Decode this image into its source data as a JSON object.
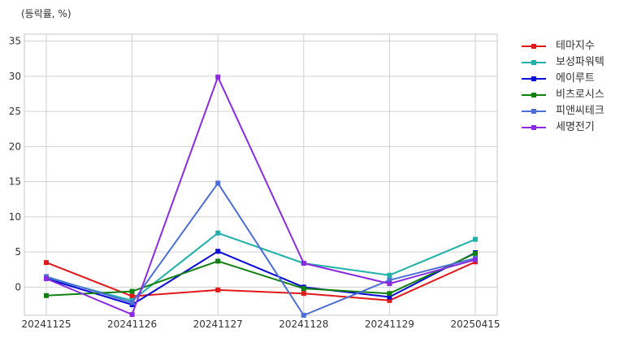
{
  "chart_data": {
    "type": "line",
    "ylabel": "(등락률, %)",
    "categories": [
      "20241125",
      "20241126",
      "20241127",
      "20241128",
      "20241129",
      "20250415"
    ],
    "yticks": [
      0,
      5,
      10,
      15,
      20,
      25,
      30,
      35
    ],
    "ylim": [
      -4,
      36
    ],
    "grid": true,
    "legend_position": "right",
    "series": [
      {
        "name": "테마지수",
        "color": "#e0191b",
        "values": [
          3.5,
          -1.3,
          -0.4,
          -0.9,
          -1.9,
          3.6
        ]
      },
      {
        "name": "보성파워텍",
        "color": "#20b2aa",
        "values": [
          1.3,
          -1.9,
          7.7,
          3.4,
          1.7,
          6.8
        ]
      },
      {
        "name": "에이루트",
        "color": "#0a0ad8",
        "values": [
          1.2,
          -2.5,
          5.1,
          0.0,
          -1.4,
          4.9
        ]
      },
      {
        "name": "비츠로시스",
        "color": "#108010",
        "values": [
          -1.2,
          -0.6,
          3.7,
          -0.2,
          -0.9,
          4.8
        ]
      },
      {
        "name": "피앤씨테크",
        "color": "#4b6fd6",
        "values": [
          1.5,
          -2.2,
          14.8,
          -4.0,
          1.0,
          4.1
        ]
      },
      {
        "name": "세명전기",
        "color": "#8a2be2",
        "values": [
          1.2,
          -3.9,
          29.9,
          3.4,
          0.5,
          3.9
        ]
      }
    ]
  }
}
